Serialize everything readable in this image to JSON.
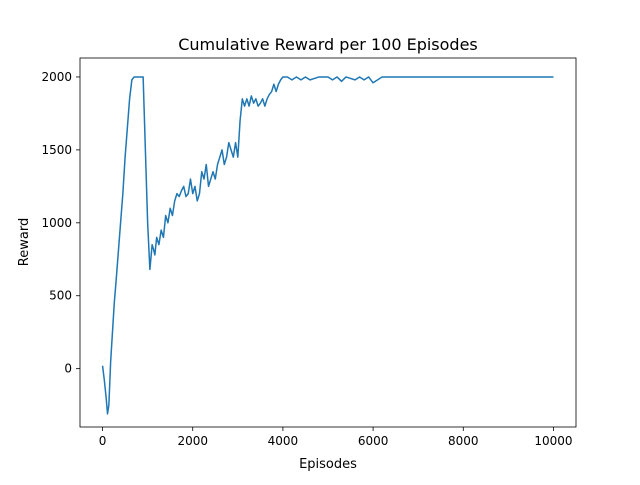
{
  "chart_data": {
    "type": "line",
    "title": "Cumulative Reward per 100 Episodes",
    "xlabel": "Episodes",
    "ylabel": "Reward",
    "xlim": [
      -500,
      10500
    ],
    "ylim": [
      -400,
      2130
    ],
    "xticks": [
      0,
      2000,
      4000,
      6000,
      8000,
      10000
    ],
    "xtick_labels": [
      "0",
      "2000",
      "4000",
      "6000",
      "8000",
      "10000"
    ],
    "yticks": [
      0,
      500,
      1000,
      1500,
      2000
    ],
    "ytick_labels": [
      "0",
      "500",
      "1000",
      "1500",
      "2000"
    ],
    "grid": false,
    "line_color": "#1f77b4",
    "series": [
      {
        "x": [
          0,
          40,
          80,
          110,
          140,
          160,
          180,
          200,
          230,
          260,
          300,
          350,
          400,
          450,
          500,
          550,
          600,
          650,
          700,
          750,
          800,
          850,
          900,
          950,
          1000,
          1050,
          1100,
          1130,
          1160,
          1200,
          1250,
          1300,
          1350,
          1400,
          1450,
          1500,
          1550,
          1600,
          1650,
          1700,
          1750,
          1800,
          1850,
          1900,
          1950,
          2000,
          2050,
          2100,
          2150,
          2200,
          2250,
          2300,
          2350,
          2400,
          2450,
          2500,
          2550,
          2600,
          2650,
          2700,
          2750,
          2800,
          2850,
          2900,
          2950,
          3000,
          3050,
          3100,
          3150,
          3200,
          3250,
          3300,
          3350,
          3400,
          3450,
          3500,
          3550,
          3600,
          3650,
          3700,
          3750,
          3800,
          3850,
          3900,
          3950,
          4000,
          4100,
          4200,
          4300,
          4400,
          4500,
          4600,
          4700,
          4800,
          4900,
          5000,
          5100,
          5200,
          5300,
          5400,
          5500,
          5600,
          5700,
          5800,
          5900,
          6000,
          6200,
          7000,
          8000,
          9000,
          10000
        ],
        "y": [
          20,
          -80,
          -200,
          -310,
          -250,
          -100,
          50,
          150,
          300,
          450,
          600,
          800,
          1000,
          1200,
          1450,
          1650,
          1850,
          1980,
          2000,
          2000,
          2000,
          2000,
          2000,
          1500,
          1000,
          680,
          850,
          820,
          780,
          900,
          850,
          950,
          900,
          1050,
          1000,
          1100,
          1050,
          1150,
          1200,
          1180,
          1220,
          1250,
          1180,
          1200,
          1300,
          1200,
          1250,
          1150,
          1200,
          1350,
          1300,
          1400,
          1250,
          1300,
          1350,
          1300,
          1400,
          1450,
          1500,
          1400,
          1450,
          1550,
          1500,
          1450,
          1550,
          1450,
          1700,
          1850,
          1800,
          1850,
          1800,
          1870,
          1820,
          1850,
          1800,
          1820,
          1850,
          1800,
          1850,
          1880,
          1900,
          1950,
          1900,
          1950,
          1980,
          2000,
          2000,
          1980,
          2000,
          1980,
          2000,
          1980,
          1990,
          2000,
          2000,
          2000,
          1980,
          2000,
          1970,
          2000,
          1990,
          1980,
          2000,
          1980,
          2000,
          1960,
          2000,
          2000,
          2000,
          2000,
          2000
        ]
      }
    ]
  }
}
